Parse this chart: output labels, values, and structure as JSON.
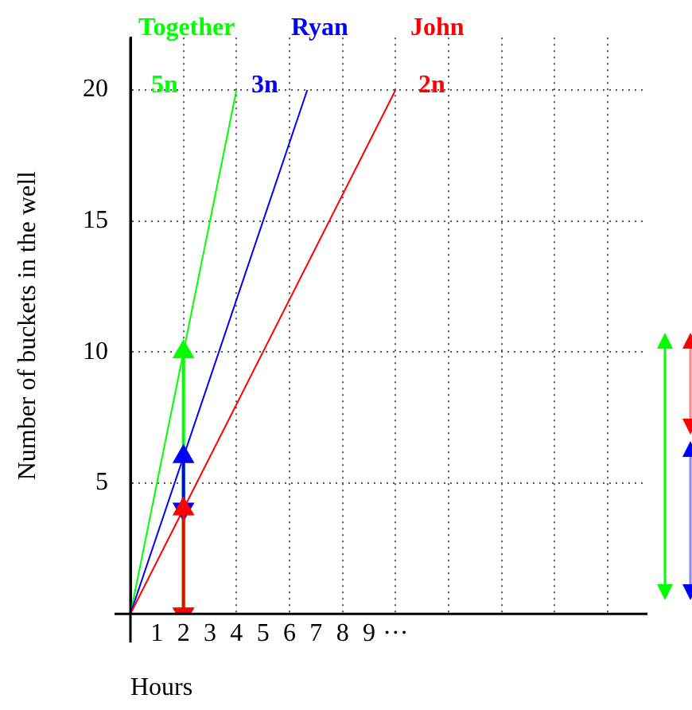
{
  "chart_data": {
    "type": "line",
    "xlabel": "Hours",
    "ylabel": "Number of buckets in the well",
    "xlim": [
      0,
      19.5
    ],
    "ylim": [
      0,
      22
    ],
    "xticks": [
      1,
      2,
      3,
      4,
      5,
      6,
      7,
      8,
      9,
      {
        "value": 10,
        "label": "···"
      },
      {
        "value": 12,
        "label": null
      },
      {
        "value": 14,
        "label": null
      },
      {
        "value": 16,
        "label": null
      },
      {
        "value": 18,
        "label": null
      }
    ],
    "yticks": [
      {
        "value": 0,
        "label": null
      },
      5,
      10,
      15,
      20
    ],
    "grid": true,
    "legend": false,
    "marker": "none",
    "line_style": "solid",
    "annotations": [
      "5n",
      "3n",
      "2n"
    ],
    "series": [
      {
        "name": "Together",
        "color": "#00ff00",
        "x": [
          0,
          4
        ],
        "values": [
          0,
          20
        ]
      },
      {
        "name": "Ryan",
        "color": "#0000ff",
        "x": [
          0,
          6.67
        ],
        "values": [
          0,
          20
        ]
      },
      {
        "name": "John",
        "color": "#ff0000",
        "x": [
          0,
          10
        ],
        "values": [
          0,
          20
        ]
      },
      {
        "color": "#00ff00",
        "x": [
          2,
          2
        ],
        "values": [
          0,
          10
        ],
        "marker": "triangle"
      },
      {
        "color": "#0000ff",
        "x": [
          2,
          2
        ],
        "values": [
          4,
          6
        ],
        "marker": "triangle"
      },
      {
        "color": "#ff0000",
        "x": [
          2,
          2
        ],
        "values": [
          0,
          4
        ],
        "marker": "triangle"
      }
    ]
  }
}
